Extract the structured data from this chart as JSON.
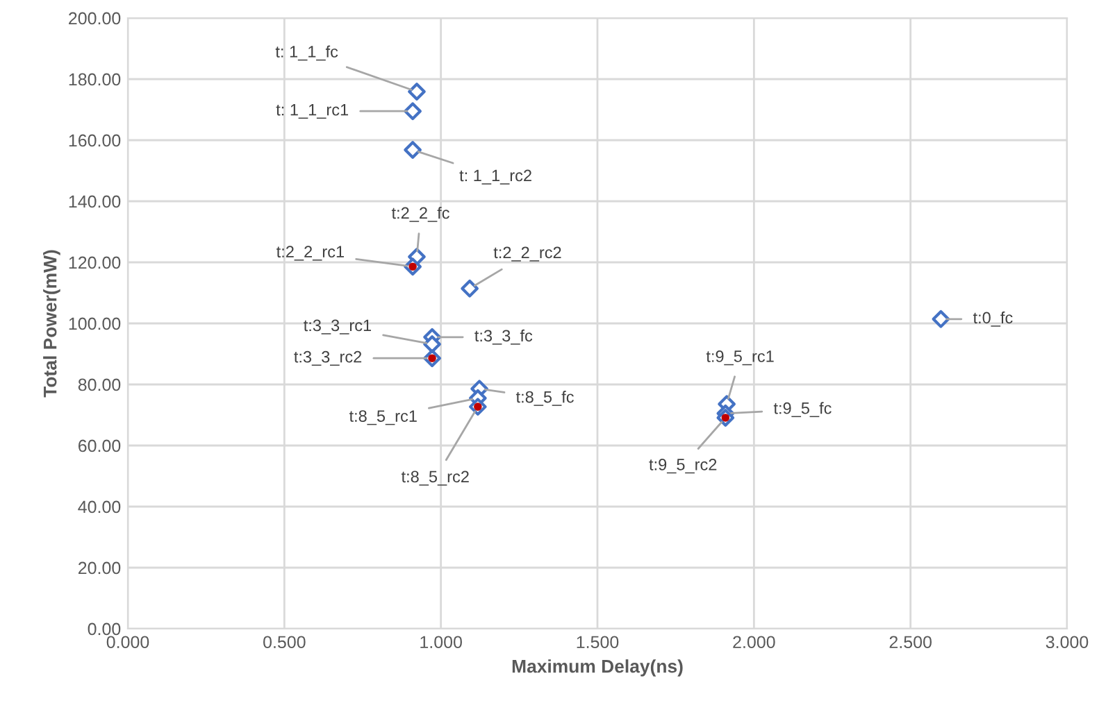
{
  "chart_data": {
    "type": "scatter",
    "xlabel": "Maximum Delay(ns)",
    "ylabel": "Total Power(mW)",
    "series": [
      {
        "color": "#4472c4",
        "marker": "diamond",
        "x": [
          0.923,
          0.91,
          0.91,
          0.923,
          0.91,
          1.092,
          0.972,
          0.972,
          0.972,
          1.123,
          1.118,
          1.118,
          1.913,
          1.909,
          1.909,
          2.597
        ],
        "values": [
          175.9,
          169.5,
          156.8,
          121.8,
          118.6,
          111.4,
          95.5,
          93.2,
          88.6,
          78.6,
          75.5,
          72.7,
          73.6,
          70.5,
          69.1,
          101.4
        ]
      },
      {
        "color": "#c00000",
        "marker": "circle",
        "x": [
          0.91,
          0.972,
          1.118,
          1.909
        ],
        "values": [
          118.6,
          88.6,
          72.7,
          69.1
        ]
      }
    ],
    "annotations": [
      {
        "text": "t: 1_1_fc",
        "x": 0.923,
        "y": 175.9
      },
      {
        "text": "t: 1_1_rc1",
        "x": 0.91,
        "y": 169.5
      },
      {
        "text": "t: 1_1_rc2",
        "x": 0.91,
        "y": 156.8
      },
      {
        "text": "t:2_2_fc",
        "x": 0.923,
        "y": 121.8
      },
      {
        "text": "t:2_2_rc1",
        "x": 0.91,
        "y": 118.6
      },
      {
        "text": "t:2_2_rc2",
        "x": 1.092,
        "y": 111.4
      },
      {
        "text": "t:3_3_fc",
        "x": 0.972,
        "y": 95.5
      },
      {
        "text": "t:3_3_rc1",
        "x": 0.972,
        "y": 93.2
      },
      {
        "text": "t:3_3_rc2",
        "x": 0.972,
        "y": 88.6
      },
      {
        "text": "t:8_5_fc",
        "x": 1.123,
        "y": 78.6
      },
      {
        "text": "t:8_5_rc1",
        "x": 1.118,
        "y": 75.5
      },
      {
        "text": "t:8_5_rc2",
        "x": 1.118,
        "y": 72.7
      },
      {
        "text": "t:9_5_rc1",
        "x": 1.913,
        "y": 73.6
      },
      {
        "text": "t:9_5_fc",
        "x": 1.909,
        "y": 70.5
      },
      {
        "text": "t:9_5_rc2",
        "x": 1.909,
        "y": 69.1
      },
      {
        "text": "t:0_fc",
        "x": 2.597,
        "y": 101.4
      }
    ],
    "xlim": [
      0,
      3
    ],
    "ylim": [
      0,
      200
    ],
    "xticks": [
      {
        "value": 0,
        "label": "0.000"
      },
      {
        "value": 0.5,
        "label": "0.500"
      },
      {
        "value": 1,
        "label": "1.000"
      },
      {
        "value": 1.5,
        "label": "1.500"
      },
      {
        "value": 2,
        "label": "2.000"
      },
      {
        "value": 2.5,
        "label": "2.500"
      },
      {
        "value": 3,
        "label": "3.000"
      }
    ],
    "yticks": [
      {
        "value": 0,
        "label": "0.00"
      },
      {
        "value": 20,
        "label": "20.00"
      },
      {
        "value": 40,
        "label": "40.00"
      },
      {
        "value": 60,
        "label": "60.00"
      },
      {
        "value": 80,
        "label": "80.00"
      },
      {
        "value": 100,
        "label": "100.00"
      },
      {
        "value": 120,
        "label": "120.00"
      },
      {
        "value": 140,
        "label": "140.00"
      },
      {
        "value": 160,
        "label": "160.00"
      },
      {
        "value": 180,
        "label": "180.00"
      },
      {
        "value": 200,
        "label": "200.00"
      }
    ],
    "grid": true
  }
}
